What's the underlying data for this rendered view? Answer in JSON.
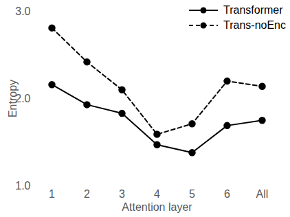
{
  "chart_data": {
    "type": "line",
    "x_label": "Attention layer",
    "y_label": "Entropy",
    "categories": [
      "1",
      "2",
      "3",
      "4",
      "5",
      "6",
      "All"
    ],
    "series": [
      {
        "name": "Transformer",
        "color": "#000000",
        "line_style": "solid",
        "marker": "circle",
        "values": [
          2.16,
          1.93,
          1.83,
          1.47,
          1.38,
          1.69,
          1.75
        ]
      },
      {
        "name": "Trans-noEnc",
        "color": "#000000",
        "line_style": "dashed",
        "marker": "circle",
        "values": [
          2.81,
          2.42,
          2.1,
          1.59,
          1.71,
          2.2,
          2.14
        ]
      }
    ],
    "ylim": [
      1,
      3
    ],
    "yticks": [
      1,
      2,
      3
    ],
    "grid": false,
    "legend": "upper right"
  }
}
